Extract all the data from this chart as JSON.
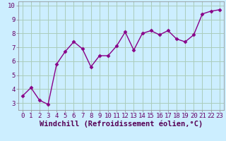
{
  "x": [
    0,
    1,
    2,
    3,
    4,
    5,
    6,
    7,
    8,
    9,
    10,
    11,
    12,
    13,
    14,
    15,
    16,
    17,
    18,
    19,
    20,
    21,
    22,
    23
  ],
  "y": [
    3.5,
    4.1,
    3.2,
    2.9,
    5.8,
    6.7,
    7.4,
    6.9,
    5.6,
    6.4,
    6.4,
    7.1,
    8.1,
    6.8,
    8.0,
    8.2,
    7.9,
    8.2,
    7.6,
    7.4,
    7.9,
    9.4,
    9.6,
    9.7
  ],
  "line_color": "#880088",
  "marker_color": "#880088",
  "bg_color": "#cceeff",
  "grid_color": "#aaccbb",
  "xlabel": "Windchill (Refroidissement éolien,°C)",
  "xlabel_color": "#550055",
  "xlim": [
    -0.5,
    23.5
  ],
  "ylim": [
    2.5,
    10.3
  ],
  "yticks": [
    3,
    4,
    5,
    6,
    7,
    8,
    9,
    10
  ],
  "xticks": [
    0,
    1,
    2,
    3,
    4,
    5,
    6,
    7,
    8,
    9,
    10,
    11,
    12,
    13,
    14,
    15,
    16,
    17,
    18,
    19,
    20,
    21,
    22,
    23
  ],
  "tick_label_color": "#660066",
  "spine_color": "#888888",
  "font_family": "monospace",
  "tick_fontsize": 6.5,
  "xlabel_fontsize": 7.5
}
